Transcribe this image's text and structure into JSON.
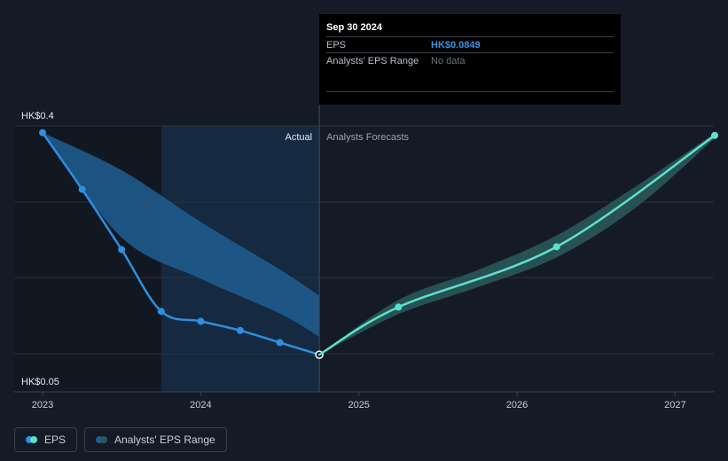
{
  "chart_data": {
    "type": "line",
    "y_axis": {
      "top_label": "HK$0.4",
      "bottom_label": "HK$0.05",
      "ylim": [
        0.05,
        0.4
      ]
    },
    "x_axis": {
      "ticks": [
        "2023",
        "2024",
        "2025",
        "2026",
        "2027"
      ],
      "xlim": [
        2023.0,
        2027.25
      ]
    },
    "divider": {
      "x": 2024.75,
      "left_label": "Actual",
      "right_label": "Analysts Forecasts"
    },
    "series": [
      {
        "name": "EPS",
        "kind": "actual",
        "color": "#2f8fe0",
        "points": [
          {
            "x": 2023.0,
            "y": 0.398
          },
          {
            "x": 2023.25,
            "y": 0.318
          },
          {
            "x": 2023.5,
            "y": 0.233
          },
          {
            "x": 2023.75,
            "y": 0.146
          },
          {
            "x": 2024.0,
            "y": 0.132
          },
          {
            "x": 2024.25,
            "y": 0.119
          },
          {
            "x": 2024.5,
            "y": 0.102
          },
          {
            "x": 2024.75,
            "y": 0.0849
          }
        ]
      },
      {
        "name": "EPS",
        "kind": "forecast",
        "color": "#5fe0cf",
        "points": [
          {
            "x": 2024.75,
            "y": 0.0849
          },
          {
            "x": 2025.25,
            "y": 0.152
          },
          {
            "x": 2026.25,
            "y": 0.237
          },
          {
            "x": 2027.25,
            "y": 0.394
          }
        ]
      }
    ],
    "range_past": {
      "color": "#1e5e92",
      "x": [
        2023.0,
        2023.5,
        2024.0,
        2024.5,
        2024.75
      ],
      "high": [
        0.398,
        0.345,
        0.272,
        0.205,
        0.168
      ],
      "low": [
        0.398,
        0.25,
        0.192,
        0.143,
        0.11
      ]
    },
    "range_forecast": {
      "color": "#2a5a5a",
      "x": [
        2024.75,
        2025.25,
        2025.75,
        2026.25,
        2026.75,
        2027.25
      ],
      "high": [
        0.0849,
        0.162,
        0.204,
        0.253,
        0.322,
        0.397
      ],
      "low": [
        0.0849,
        0.142,
        0.18,
        0.222,
        0.292,
        0.39
      ]
    },
    "highlight_x": 2024.75
  },
  "tooltip": {
    "date": "Sep 30 2024",
    "rows": [
      {
        "label": "EPS",
        "value": "HK$0.0849"
      },
      {
        "label": "Analysts' EPS Range",
        "value": "No data"
      }
    ]
  },
  "legend": [
    {
      "label": "EPS",
      "colors": [
        "#2f8fe0",
        "#5fe0cf"
      ]
    },
    {
      "label": "Analysts' EPS Range",
      "colors": [
        "#1e5e92",
        "#2a5a5a"
      ]
    }
  ]
}
